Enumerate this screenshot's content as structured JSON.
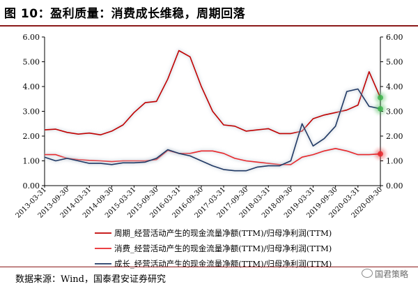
{
  "header": {
    "title": "图 10：盈利质量：消费成长维稳，周期回落"
  },
  "footer": {
    "source": "数据来源：Wind，国泰君安证券研究",
    "watermark": "国君策略"
  },
  "chart_data": {
    "type": "line",
    "y_left": {
      "ylim": [
        0,
        6
      ],
      "ticks": [
        "0.00",
        "1.00",
        "2.00",
        "3.00",
        "4.00",
        "5.00",
        "6.00"
      ]
    },
    "y_right": {
      "ylim": [
        0,
        6
      ],
      "ticks": [
        "0.00",
        "1.00",
        "2.00",
        "3.00",
        "4.00",
        "5.00",
        "6.00"
      ]
    },
    "x_tick_labels": [
      "2013-03-31",
      "2013-09-30",
      "2014-03-31",
      "2014-09-30",
      "2015-03-31",
      "2015-09-30",
      "2016-03-31",
      "2016-09-30",
      "2017-03-31",
      "2017-09-30",
      "2018-03-31",
      "2018-09-30",
      "2019-03-31",
      "2019-09-30",
      "2020-03-31",
      "2020-09-30"
    ],
    "x_range": [
      "2013-03-31",
      "2020-09-30"
    ],
    "grid": false,
    "legend_position": "bottom",
    "series": [
      {
        "name": "周期_经营活动产生的现金流量净额(TTM)/归母净利润(TTM)",
        "color": "#c00000",
        "points": [
          [
            "2013-03-31",
            2.25
          ],
          [
            "2013-06-30",
            2.28
          ],
          [
            "2013-09-30",
            2.15
          ],
          [
            "2013-12-31",
            2.08
          ],
          [
            "2014-03-31",
            2.12
          ],
          [
            "2014-06-30",
            2.05
          ],
          [
            "2014-09-30",
            2.2
          ],
          [
            "2014-12-31",
            2.45
          ],
          [
            "2015-03-31",
            2.95
          ],
          [
            "2015-06-30",
            3.35
          ],
          [
            "2015-09-30",
            3.4
          ],
          [
            "2015-12-31",
            4.3
          ],
          [
            "2016-03-31",
            5.45
          ],
          [
            "2016-06-30",
            5.2
          ],
          [
            "2016-09-30",
            4.0
          ],
          [
            "2016-12-31",
            3.0
          ],
          [
            "2017-03-31",
            2.45
          ],
          [
            "2017-06-30",
            2.4
          ],
          [
            "2017-09-30",
            2.2
          ],
          [
            "2017-12-31",
            2.25
          ],
          [
            "2018-03-31",
            2.3
          ],
          [
            "2018-06-30",
            2.1
          ],
          [
            "2018-09-30",
            2.1
          ],
          [
            "2018-12-31",
            2.2
          ],
          [
            "2019-03-31",
            2.7
          ],
          [
            "2019-06-30",
            2.85
          ],
          [
            "2019-09-30",
            2.95
          ],
          [
            "2019-12-31",
            3.05
          ],
          [
            "2020-03-31",
            3.25
          ],
          [
            "2020-06-30",
            4.6
          ],
          [
            "2020-09-30",
            3.55
          ]
        ]
      },
      {
        "name": "消费_经营活动产生的现金流量净额(TTM)/归母净利润(TTM)",
        "color": "#e8262a",
        "points": [
          [
            "2013-03-31",
            1.25
          ],
          [
            "2013-06-30",
            1.25
          ],
          [
            "2013-09-30",
            1.1
          ],
          [
            "2013-12-31",
            1.05
          ],
          [
            "2014-03-31",
            1.02
          ],
          [
            "2014-06-30",
            1.0
          ],
          [
            "2014-09-30",
            0.97
          ],
          [
            "2014-12-31",
            1.0
          ],
          [
            "2015-03-31",
            1.0
          ],
          [
            "2015-06-30",
            1.0
          ],
          [
            "2015-09-30",
            1.05
          ],
          [
            "2015-12-31",
            1.42
          ],
          [
            "2016-03-31",
            1.3
          ],
          [
            "2016-06-30",
            1.3
          ],
          [
            "2016-09-30",
            1.4
          ],
          [
            "2016-12-31",
            1.4
          ],
          [
            "2017-03-31",
            1.3
          ],
          [
            "2017-06-30",
            1.1
          ],
          [
            "2017-09-30",
            1.0
          ],
          [
            "2017-12-31",
            0.95
          ],
          [
            "2018-03-31",
            0.9
          ],
          [
            "2018-06-30",
            0.85
          ],
          [
            "2018-09-30",
            0.85
          ],
          [
            "2018-12-31",
            1.15
          ],
          [
            "2019-03-31",
            1.25
          ],
          [
            "2019-06-30",
            1.4
          ],
          [
            "2019-09-30",
            1.5
          ],
          [
            "2019-12-31",
            1.4
          ],
          [
            "2020-03-31",
            1.25
          ],
          [
            "2020-06-30",
            1.25
          ],
          [
            "2020-09-30",
            1.28
          ]
        ]
      },
      {
        "name": "成长_经营活动产生的现金流量净额(TTM)/归母净利润(TTM)",
        "color": "#1f3864",
        "points": [
          [
            "2013-03-31",
            1.15
          ],
          [
            "2013-06-30",
            1.0
          ],
          [
            "2013-09-30",
            1.1
          ],
          [
            "2013-12-31",
            1.0
          ],
          [
            "2014-03-31",
            0.9
          ],
          [
            "2014-06-30",
            0.9
          ],
          [
            "2014-09-30",
            0.85
          ],
          [
            "2014-12-31",
            0.92
          ],
          [
            "2015-03-31",
            0.92
          ],
          [
            "2015-06-30",
            0.95
          ],
          [
            "2015-09-30",
            1.1
          ],
          [
            "2015-12-31",
            1.45
          ],
          [
            "2016-03-31",
            1.3
          ],
          [
            "2016-06-30",
            1.2
          ],
          [
            "2016-09-30",
            1.0
          ],
          [
            "2016-12-31",
            0.8
          ],
          [
            "2017-03-31",
            0.65
          ],
          [
            "2017-06-30",
            0.6
          ],
          [
            "2017-09-30",
            0.6
          ],
          [
            "2017-12-31",
            0.75
          ],
          [
            "2018-03-31",
            0.8
          ],
          [
            "2018-06-30",
            0.8
          ],
          [
            "2018-09-30",
            1.0
          ],
          [
            "2018-12-31",
            2.5
          ],
          [
            "2019-03-31",
            1.6
          ],
          [
            "2019-06-30",
            1.9
          ],
          [
            "2019-09-30",
            2.4
          ],
          [
            "2019-12-31",
            3.8
          ],
          [
            "2020-03-31",
            3.9
          ],
          [
            "2020-06-30",
            3.2
          ],
          [
            "2020-09-30",
            3.1
          ]
        ]
      }
    ],
    "highlighted_points": [
      {
        "series": 0,
        "x": "2020-09-30",
        "y": 3.55,
        "color": "#3cb44b"
      },
      {
        "series": 2,
        "x": "2020-09-30",
        "y": 3.1,
        "color": "#3cb44b"
      },
      {
        "series": 1,
        "x": "2020-09-30",
        "y": 1.28,
        "color": "#e8262a"
      }
    ]
  }
}
